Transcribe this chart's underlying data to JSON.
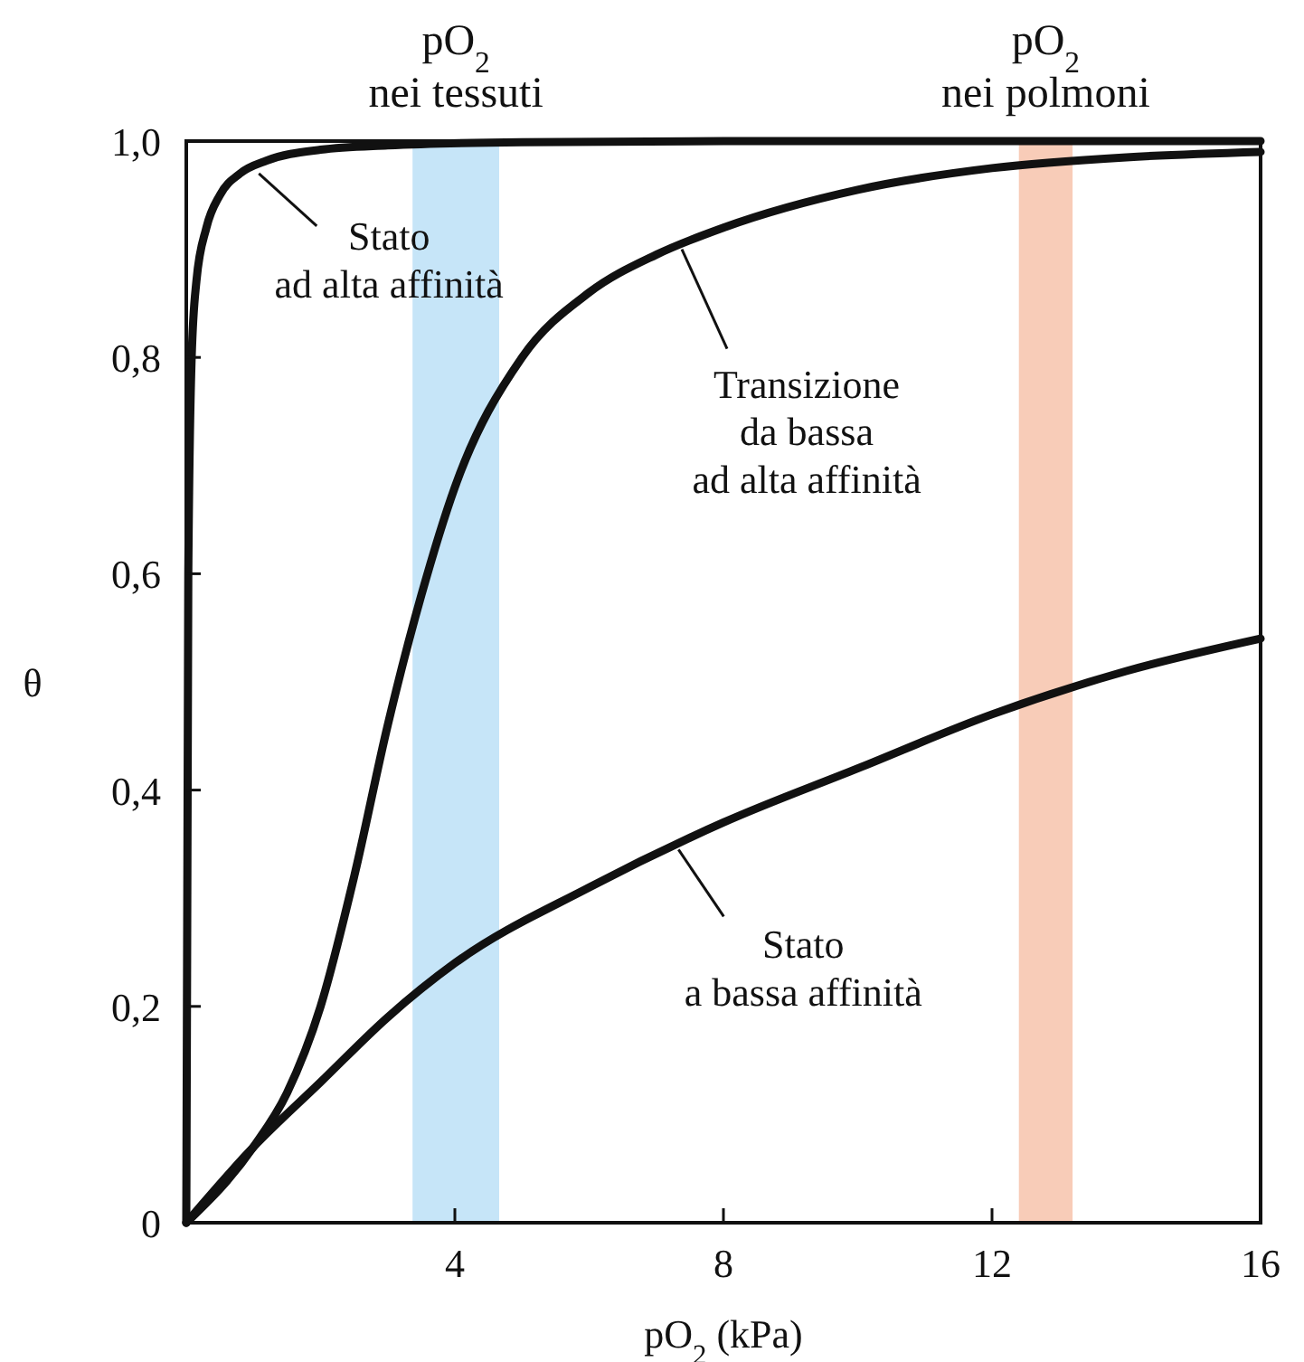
{
  "chart_data": {
    "type": "line",
    "xlabel": "pO$_{2}$ (kPa)",
    "ylabel": "θ",
    "xlim": [
      0,
      16
    ],
    "ylim": [
      0,
      1
    ],
    "xticks": [
      4,
      8,
      12,
      16
    ],
    "yticks": [
      0,
      {
        "value": 0.2,
        "label": "0,2"
      },
      {
        "value": 0.4,
        "label": "0,4"
      },
      {
        "value": 0.6,
        "label": "0,6"
      },
      {
        "value": 0.8,
        "label": "0,8"
      },
      {
        "value": 1,
        "label": "1,0"
      }
    ],
    "bands": [
      {
        "axis": "x",
        "from": 3.37,
        "to": 4.66,
        "label": "pO$_{2}$\nnei tessuti",
        "color": "#c6e5f8"
      },
      {
        "axis": "x",
        "from": 12.4,
        "to": 13.2,
        "label": "pO$_{2}$\nnei polmoni",
        "color": "#f8ccb8"
      }
    ],
    "series": [
      {
        "color": "#111111",
        "x": [
          0,
          0.03,
          0.08,
          0.15,
          0.3,
          0.5,
          0.8,
          1.2,
          2,
          3,
          5,
          8,
          16
        ],
        "values": [
          0,
          0.6,
          0.8,
          0.87,
          0.92,
          0.95,
          0.97,
          0.982,
          0.992,
          0.996,
          0.999,
          1,
          1
        ]
      },
      {
        "color": "#111111",
        "x": [
          0,
          1,
          1.5,
          2,
          2.5,
          3,
          3.5,
          4,
          5,
          6,
          7,
          8,
          10,
          12,
          14,
          16
        ],
        "values": [
          0,
          0.07,
          0.12,
          0.2,
          0.32,
          0.46,
          0.58,
          0.68,
          0.8,
          0.86,
          0.895,
          0.92,
          0.955,
          0.975,
          0.985,
          0.99
        ]
      },
      {
        "color": "#111111",
        "x": [
          0,
          1,
          2,
          3,
          4,
          6,
          8,
          10,
          12,
          14,
          16
        ],
        "values": [
          0,
          0.07,
          0.13,
          0.19,
          0.24,
          0.31,
          0.37,
          0.42,
          0.47,
          0.51,
          0.54
        ]
      }
    ],
    "annotations": [
      {
        "text": "Stato\nad alta affinità",
        "x": 1,
        "y": 0.975
      },
      {
        "text": "Transizione\nda bassa\nad alta affinità",
        "x": 7.3,
        "y": 0.905
      },
      {
        "text": "Stato\na bassa affinità",
        "x": 7.25,
        "y": 0.35
      }
    ],
    "grid": false,
    "line_style": "solid",
    "marker": "none"
  }
}
